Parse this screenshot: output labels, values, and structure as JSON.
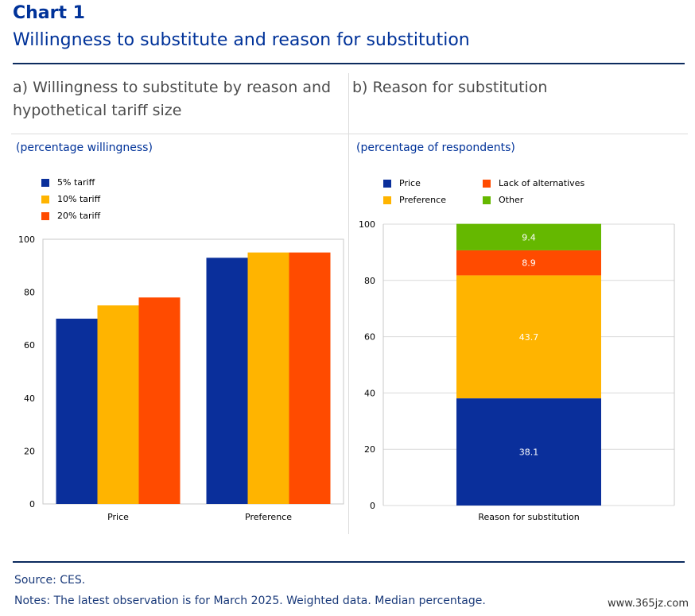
{
  "header": {
    "title": "Chart 1",
    "subtitle": "Willingness to substitute and reason for substitution"
  },
  "colors": {
    "navy": "#003299",
    "blue": "#0a2f9b",
    "yellow": "#ffb400",
    "orange": "#ff4b00",
    "green": "#65b800"
  },
  "panels": [
    {
      "title": "a) Willingness to substitute by reason and hypothetical tariff size",
      "unit": "(percentage willingness)"
    },
    {
      "title": "b) Reason for substitution",
      "unit": "(percentage of respondents)"
    }
  ],
  "chart_data": [
    {
      "type": "bar",
      "categories": [
        "Price",
        "Preference"
      ],
      "series": [
        {
          "name": "5% tariff",
          "color": "#0a2f9b",
          "values": [
            70,
            93
          ]
        },
        {
          "name": "10% tariff",
          "color": "#ffb400",
          "values": [
            75,
            95
          ]
        },
        {
          "name": "20% tariff",
          "color": "#ff4b00",
          "values": [
            78,
            95
          ]
        }
      ],
      "ylim": [
        0,
        100
      ],
      "yticks": [
        0,
        20,
        40,
        60,
        80,
        100
      ],
      "grid": false,
      "legend": "top-left"
    },
    {
      "type": "bar",
      "stacked": true,
      "categories": [
        "Reason for substitution"
      ],
      "series": [
        {
          "name": "Price",
          "color": "#0a2f9b",
          "values": [
            38.1
          ],
          "label": "38.1"
        },
        {
          "name": "Preference",
          "color": "#ffb400",
          "values": [
            43.7
          ],
          "label": "43.7"
        },
        {
          "name": "Lack of alternatives",
          "color": "#ff4b00",
          "values": [
            8.9
          ],
          "label": "8.9"
        },
        {
          "name": "Other",
          "color": "#65b800",
          "values": [
            9.4
          ],
          "label": "9.4"
        }
      ],
      "ylim": [
        0,
        100
      ],
      "yticks": [
        0,
        20,
        40,
        60,
        80,
        100
      ],
      "grid": true,
      "legend": "top-left"
    }
  ],
  "footer": {
    "source": "Source: CES.",
    "notes": "Notes: The latest observation is for March 2025. Weighted data. Median percentage."
  },
  "watermark": "www.365jz.com"
}
